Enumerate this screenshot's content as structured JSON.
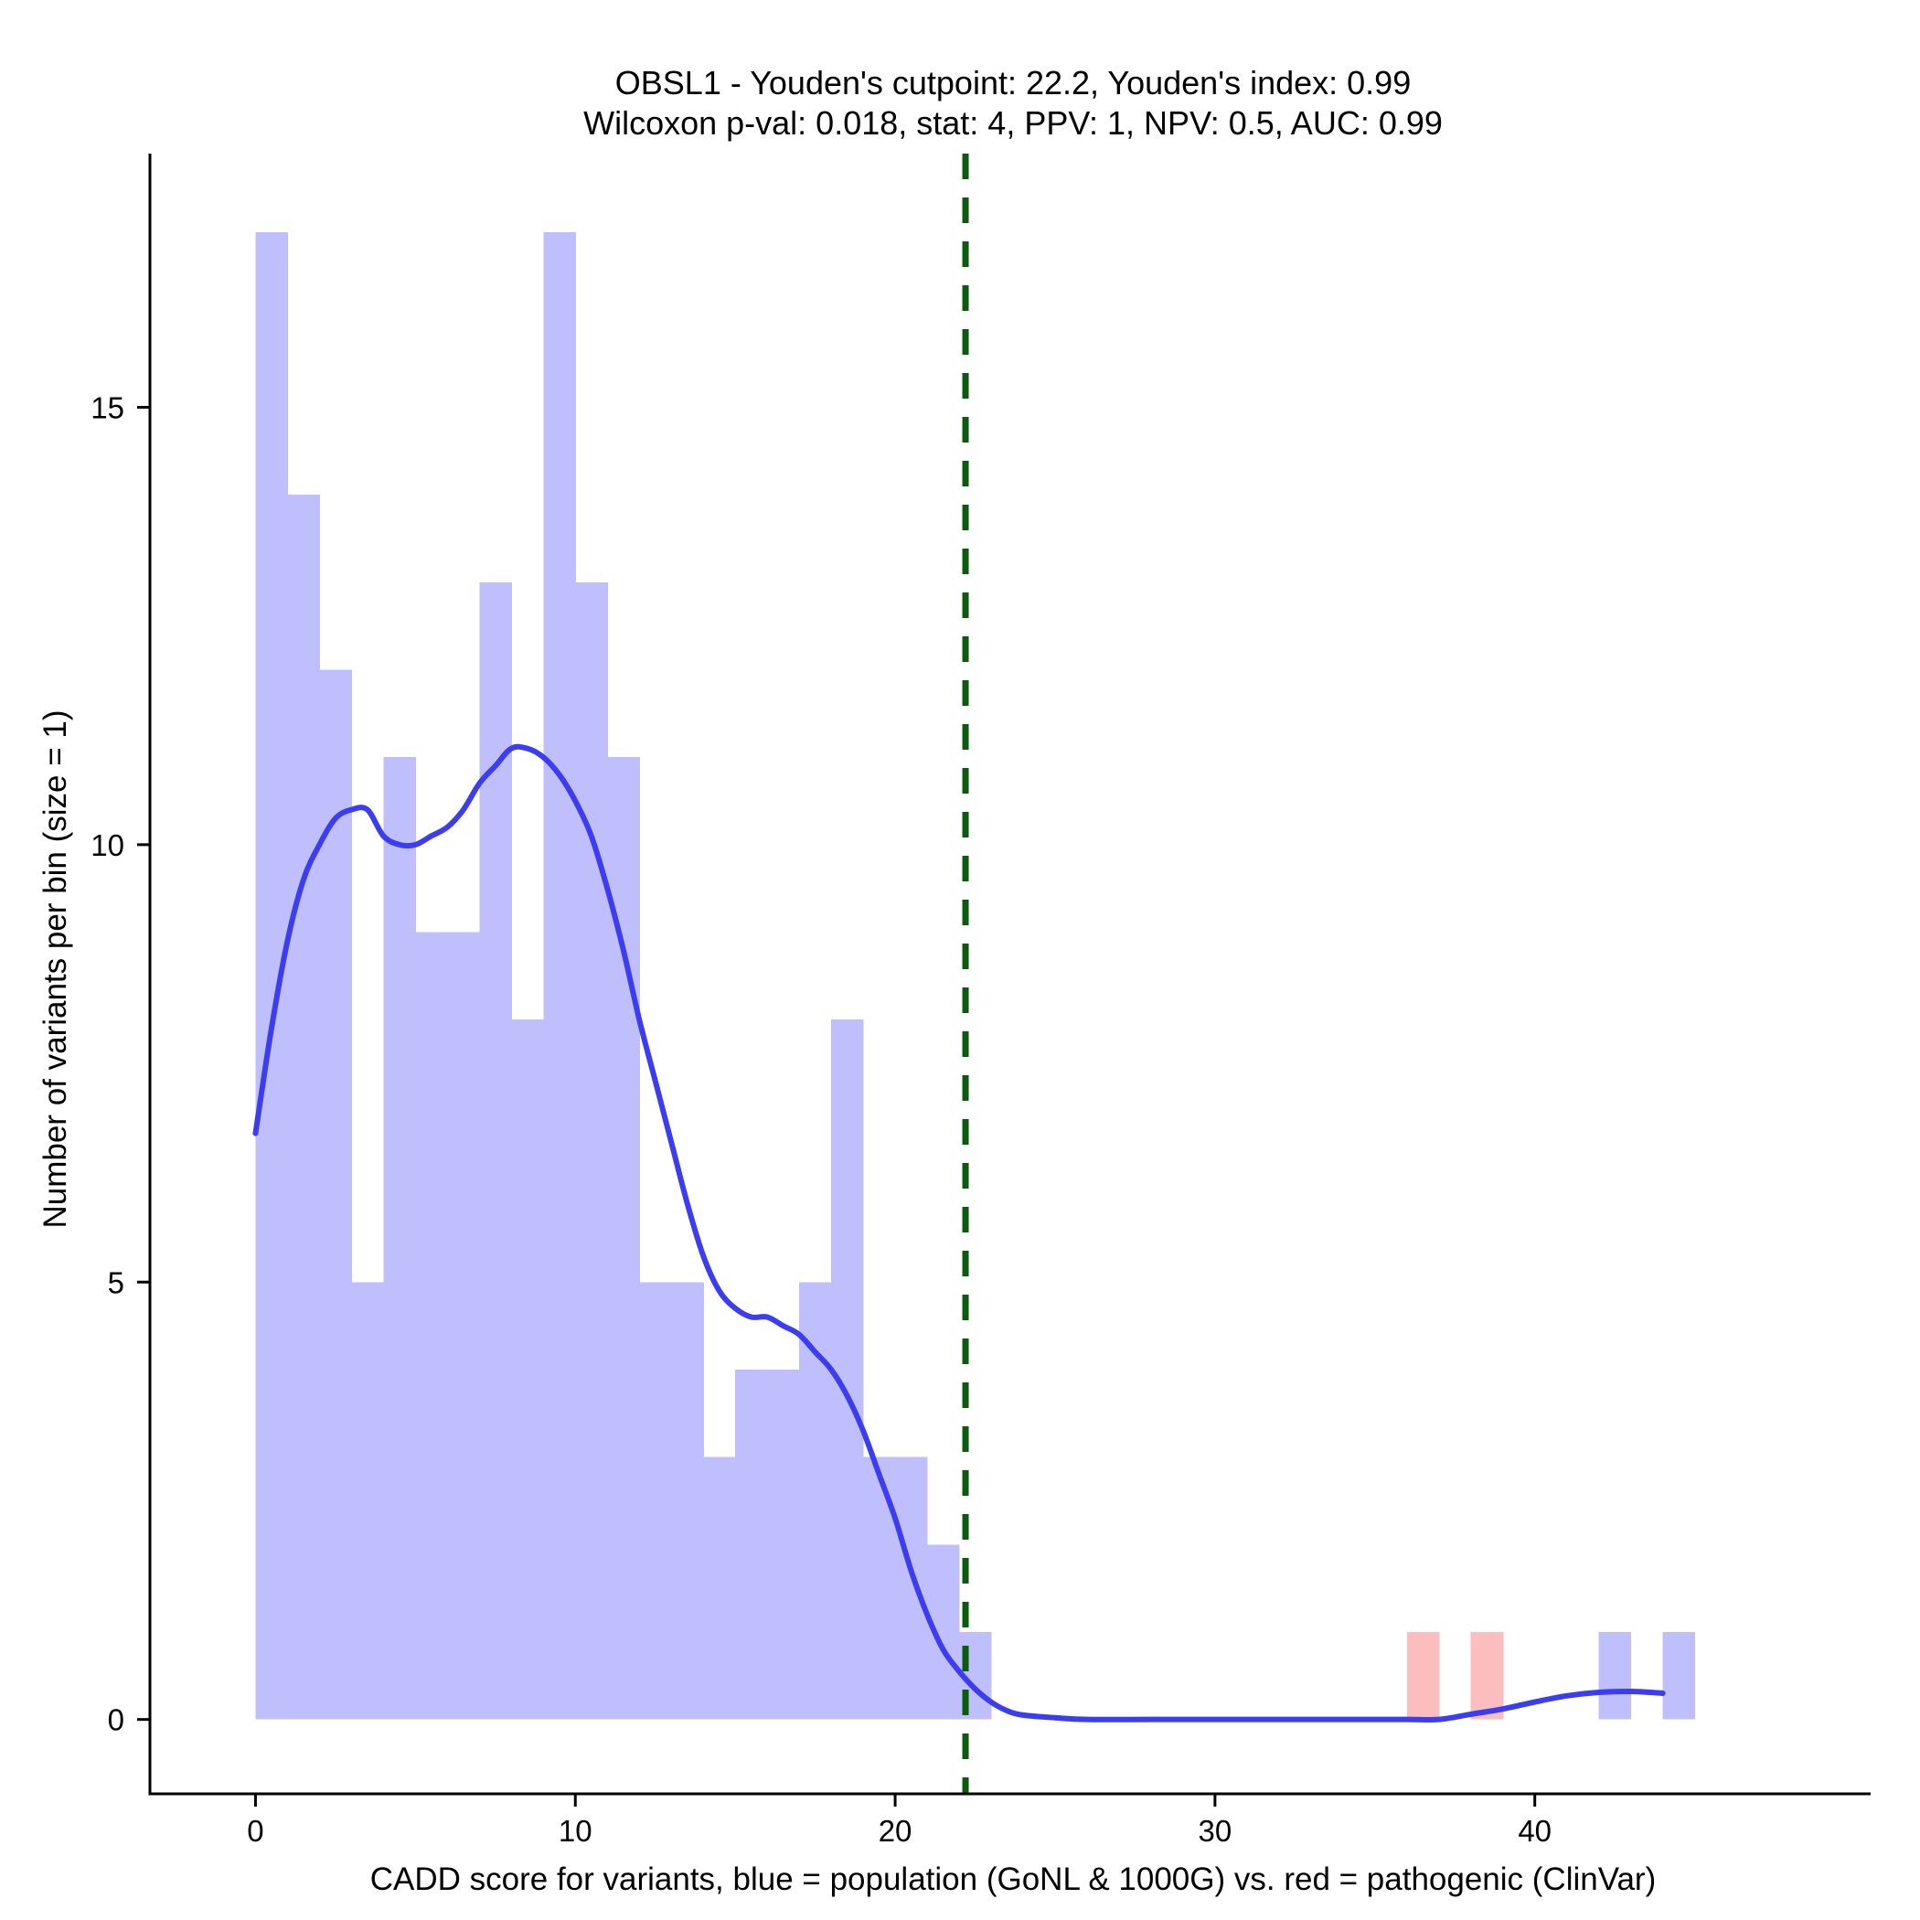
{
  "chart_data": {
    "type": "bar",
    "title_line1": "OBSL1 - Youden's cutpoint: 22.2, Youden's index: 0.99",
    "title_line2": "Wilcoxon p-val: 0.018, stat: 4, PPV: 1, NPV: 0.5, AUC: 0.99",
    "xlabel": "CADD score for variants, blue = population (GoNL & 1000G) vs. red = pathogenic (ClinVar)",
    "ylabel": "Number of variants per bin (size = 1)",
    "xlim": [
      -3.3,
      50.5
    ],
    "ylim": [
      -0.85,
      17.9
    ],
    "x_ticks": [
      0,
      10,
      20,
      30,
      40
    ],
    "y_ticks": [
      0,
      5,
      10,
      15
    ],
    "bin_width": 1,
    "cutpoint": 22.2,
    "colors": {
      "population": "#bfbffd",
      "pathogenic": "#fcbdbf",
      "density": "#3c3cf0",
      "cutpoint": "#0c5a0c"
    },
    "series": [
      {
        "name": "population",
        "bins": [
          {
            "start": 0,
            "count": 17
          },
          {
            "start": 1,
            "count": 14
          },
          {
            "start": 2,
            "count": 12
          },
          {
            "start": 3,
            "count": 5
          },
          {
            "start": 4,
            "count": 11
          },
          {
            "start": 5,
            "count": 9
          },
          {
            "start": 6,
            "count": 9
          },
          {
            "start": 7,
            "count": 13
          },
          {
            "start": 8,
            "count": 8
          },
          {
            "start": 9,
            "count": 17
          },
          {
            "start": 10,
            "count": 13
          },
          {
            "start": 11,
            "count": 11
          },
          {
            "start": 12,
            "count": 5
          },
          {
            "start": 13,
            "count": 5
          },
          {
            "start": 14,
            "count": 3
          },
          {
            "start": 15,
            "count": 4
          },
          {
            "start": 16,
            "count": 4
          },
          {
            "start": 17,
            "count": 5
          },
          {
            "start": 18,
            "count": 8
          },
          {
            "start": 19,
            "count": 3
          },
          {
            "start": 20,
            "count": 3
          },
          {
            "start": 21,
            "count": 2
          },
          {
            "start": 22,
            "count": 1
          },
          {
            "start": 42,
            "count": 1
          },
          {
            "start": 44,
            "count": 1
          }
        ]
      },
      {
        "name": "pathogenic",
        "bins": [
          {
            "start": 36,
            "count": 1
          },
          {
            "start": 38,
            "count": 1
          }
        ]
      }
    ],
    "density_curve": [
      [
        0,
        6.7
      ],
      [
        0.5,
        7.9
      ],
      [
        1,
        8.9
      ],
      [
        1.5,
        9.6
      ],
      [
        2,
        10.0
      ],
      [
        2.5,
        10.3
      ],
      [
        3,
        10.4
      ],
      [
        3.5,
        10.4
      ],
      [
        4,
        10.1
      ],
      [
        4.5,
        10.0
      ],
      [
        5,
        10.0
      ],
      [
        5.5,
        10.1
      ],
      [
        6,
        10.2
      ],
      [
        6.5,
        10.4
      ],
      [
        7,
        10.7
      ],
      [
        7.5,
        10.9
      ],
      [
        8,
        11.1
      ],
      [
        8.5,
        11.1
      ],
      [
        9,
        11.0
      ],
      [
        9.5,
        10.8
      ],
      [
        10,
        10.5
      ],
      [
        10.5,
        10.1
      ],
      [
        11,
        9.5
      ],
      [
        11.5,
        8.8
      ],
      [
        12,
        8.0
      ],
      [
        12.5,
        7.3
      ],
      [
        13,
        6.6
      ],
      [
        13.5,
        5.9
      ],
      [
        14,
        5.3
      ],
      [
        14.5,
        4.9
      ],
      [
        15,
        4.7
      ],
      [
        15.5,
        4.6
      ],
      [
        16,
        4.6
      ],
      [
        16.5,
        4.5
      ],
      [
        17,
        4.4
      ],
      [
        17.5,
        4.2
      ],
      [
        18,
        4.0
      ],
      [
        18.5,
        3.7
      ],
      [
        19,
        3.3
      ],
      [
        19.5,
        2.8
      ],
      [
        20,
        2.3
      ],
      [
        20.5,
        1.7
      ],
      [
        21,
        1.2
      ],
      [
        21.5,
        0.8
      ],
      [
        22,
        0.55
      ],
      [
        22.5,
        0.35
      ],
      [
        23,
        0.2
      ],
      [
        23.5,
        0.1
      ],
      [
        24,
        0.05
      ],
      [
        25,
        0.02
      ],
      [
        26,
        0.0
      ],
      [
        28,
        0.0
      ],
      [
        30,
        0.0
      ],
      [
        32,
        0.0
      ],
      [
        34,
        0.0
      ],
      [
        36,
        0.0
      ],
      [
        37,
        0.0
      ],
      [
        38,
        0.06
      ],
      [
        39,
        0.12
      ],
      [
        40,
        0.2
      ],
      [
        41,
        0.27
      ],
      [
        42,
        0.31
      ],
      [
        43,
        0.32
      ],
      [
        44,
        0.3
      ]
    ]
  }
}
